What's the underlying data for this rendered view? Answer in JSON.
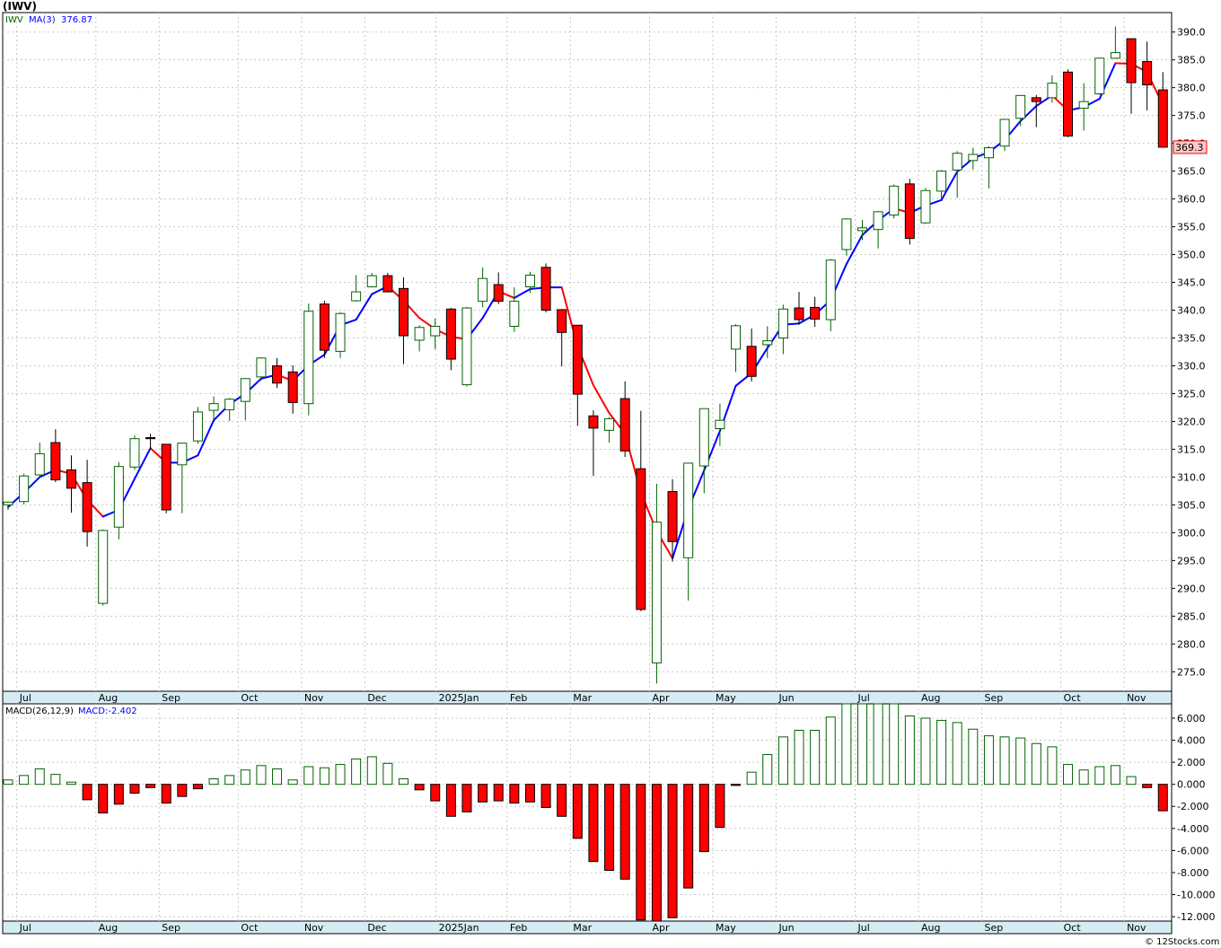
{
  "header": {
    "title": "(IWV)",
    "legend_symbol": "IWV",
    "legend_ma": "MA(3)",
    "legend_ma_value": "376.87",
    "price_badge": "369.3",
    "macd_label": "MACD(26,12,9)",
    "macd_value_label": "MACD:-2.402",
    "watermark": "© 12Stocks.com"
  },
  "colors": {
    "up": "#006400",
    "down": "#ff0000",
    "ma_up": "#0000ff",
    "ma_down": "#ff0000",
    "grid": "#c8c8c8",
    "axis_strip": "#d6ecf5",
    "badge_bg": "#ffc8c8"
  },
  "chart_data": [
    {
      "type": "candlestick",
      "title": "(IWV)",
      "interval": "weekly",
      "grid": true,
      "ylim": [
        271.5,
        393.5
      ],
      "y_ticks": [
        275,
        280,
        285,
        290,
        295,
        300,
        305,
        310,
        315,
        320,
        325,
        330,
        335,
        340,
        345,
        350,
        355,
        360,
        365,
        370,
        375,
        380,
        385,
        390
      ],
      "y_tick_labels": [
        "275.0",
        "280.0",
        "285.0",
        "290.0",
        "295.0",
        "300.0",
        "305.0",
        "310.0",
        "315.0",
        "320.0",
        "325.0",
        "330.0",
        "335.0",
        "340.0",
        "345.0",
        "350.0",
        "355.0",
        "360.0",
        "365.0",
        "370.0",
        "375.0",
        "380.0",
        "385.0",
        "390.0"
      ],
      "x_month_labels": [
        {
          "label": "Jul",
          "index": 1
        },
        {
          "label": "Aug",
          "index": 6
        },
        {
          "label": "Sep",
          "index": 10
        },
        {
          "label": "Oct",
          "index": 15
        },
        {
          "label": "Nov",
          "index": 19
        },
        {
          "label": "Dec",
          "index": 23
        },
        {
          "label": "2025Jan",
          "index": 27.5
        },
        {
          "label": "Feb",
          "index": 32
        },
        {
          "label": "Mar",
          "index": 36
        },
        {
          "label": "Apr",
          "index": 41
        },
        {
          "label": "May",
          "index": 45
        },
        {
          "label": "Jun",
          "index": 49
        },
        {
          "label": "Jul",
          "index": 54
        },
        {
          "label": "Aug",
          "index": 58
        },
        {
          "label": "Sep",
          "index": 62
        },
        {
          "label": "Oct",
          "index": 67
        },
        {
          "label": "Nov",
          "index": 71
        }
      ],
      "last_close_label": "369.3",
      "series": [
        {
          "name": "IWV",
          "candles": [
            [
              305,
              305.6,
              304.1,
              305.5
            ],
            [
              305.6,
              310.6,
              305.1,
              310.2
            ],
            [
              310.4,
              316.2,
              309.9,
              314.2
            ],
            [
              316.2,
              318.6,
              309.1,
              309.5
            ],
            [
              311.3,
              313.9,
              303.6,
              308
            ],
            [
              309,
              313.1,
              297.5,
              300.2
            ],
            [
              287.3,
              300.6,
              286.9,
              300.4
            ],
            [
              301,
              312.7,
              298.8,
              311.9
            ],
            [
              311.8,
              317.5,
              311.3,
              316.9
            ],
            [
              317.1,
              317.8,
              315,
              316.9
            ],
            [
              315.9,
              315.9,
              303.5,
              304.1
            ],
            [
              312.2,
              316.2,
              303.5,
              316.1
            ],
            [
              316.5,
              322.6,
              316,
              321.7
            ],
            [
              322,
              324.5,
              320.4,
              323.2
            ],
            [
              322.1,
              324.2,
              320.1,
              324
            ],
            [
              323.6,
              327.8,
              320.2,
              327.7
            ],
            [
              328,
              331.5,
              327.4,
              331.4
            ],
            [
              330,
              331.4,
              326,
              326.9
            ],
            [
              328.9,
              330.1,
              321.4,
              323.4
            ],
            [
              323.2,
              341.2,
              321.1,
              339.8
            ],
            [
              341.1,
              341.7,
              331.4,
              332.8
            ],
            [
              332.6,
              339.6,
              331.4,
              339.4
            ],
            [
              341.7,
              346.3,
              341.5,
              343.3
            ],
            [
              344.2,
              346.7,
              344.1,
              346.2
            ],
            [
              346.2,
              346.7,
              343.2,
              343.3
            ],
            [
              343.9,
              345.9,
              330.3,
              335.4
            ],
            [
              334.6,
              337.3,
              332.6,
              336.9
            ],
            [
              335.4,
              338.5,
              333,
              337.1
            ],
            [
              340.2,
              340.4,
              329.2,
              331.2
            ],
            [
              326.6,
              340.6,
              326.3,
              340.4
            ],
            [
              341.6,
              347.7,
              340.5,
              345.7
            ],
            [
              344.6,
              346.8,
              341.1,
              341.6
            ],
            [
              337.1,
              344.1,
              336.1,
              341.6
            ],
            [
              344.2,
              346.9,
              343.1,
              346.3
            ],
            [
              347.7,
              348.4,
              339.6,
              340
            ],
            [
              340.1,
              340.2,
              329.9,
              336
            ],
            [
              337.3,
              337.3,
              319.2,
              324.9
            ],
            [
              321,
              322,
              310.2,
              318.8
            ],
            [
              318.4,
              320.8,
              316.2,
              320.5
            ],
            [
              324.1,
              327.2,
              313.6,
              314.7
            ],
            [
              311.5,
              321.9,
              285.9,
              286.2
            ],
            [
              276.6,
              308.8,
              272.9,
              301.9
            ],
            [
              307.4,
              309.6,
              294.8,
              298.4
            ],
            [
              295.5,
              312.5,
              287.8,
              312.5
            ],
            [
              312,
              322.3,
              307.1,
              322.3
            ],
            [
              318.7,
              323.2,
              315.6,
              320.2
            ],
            [
              333,
              337.5,
              328.9,
              337.2
            ],
            [
              333.5,
              336.7,
              327.2,
              328.1
            ],
            [
              333.8,
              337.1,
              331.4,
              334.5
            ],
            [
              335,
              341,
              332.1,
              340.2
            ],
            [
              340.4,
              343.3,
              337.4,
              338.3
            ],
            [
              340.5,
              342.4,
              337,
              338.4
            ],
            [
              338.3,
              349.2,
              336.2,
              349
            ],
            [
              350.9,
              356.5,
              349.8,
              356.4
            ],
            [
              354.3,
              356.2,
              352.6,
              354.8
            ],
            [
              354.5,
              357.8,
              351.1,
              357.7
            ],
            [
              357.1,
              362.6,
              356.5,
              362.3
            ],
            [
              362.7,
              363.6,
              351.8,
              352.9
            ],
            [
              355.7,
              362,
              355.5,
              361.5
            ],
            [
              361.4,
              365.2,
              359.9,
              365
            ],
            [
              365.2,
              368.6,
              360.2,
              368.2
            ],
            [
              366.9,
              369.2,
              365.3,
              368
            ],
            [
              367.4,
              369.5,
              361.9,
              369.2
            ],
            [
              369.5,
              374.4,
              368.6,
              374.3
            ],
            [
              374.5,
              378.7,
              373.1,
              378.6
            ],
            [
              378.2,
              378.7,
              372.9,
              377.5
            ],
            [
              378.2,
              382.2,
              377.3,
              380.8
            ],
            [
              382.8,
              383.3,
              371.1,
              371.3
            ],
            [
              376.3,
              380.8,
              372.3,
              377.5
            ],
            [
              378.9,
              385.4,
              378.7,
              385.3
            ],
            [
              385.3,
              391,
              385.2,
              386.3
            ],
            [
              388.8,
              388.8,
              375.3,
              380.9
            ],
            [
              384.7,
              388.3,
              375.9,
              380.5
            ],
            [
              379.6,
              382.8,
              369.3,
              369.3
            ]
          ]
        },
        {
          "name": "MA(3)",
          "values": [
            304.6,
            307.2,
            310,
            311.3,
            310.6,
            305.9,
            302.9,
            304.1,
            309.7,
            315.2,
            312.6,
            312.6,
            313.9,
            320.2,
            323.1,
            325,
            327.7,
            328.4,
            327.3,
            330.1,
            332,
            337.3,
            338.3,
            342.9,
            344.3,
            341.7,
            338.6,
            336.6,
            335.2,
            334.8,
            338.6,
            343.4,
            342.2,
            343.8,
            344.1,
            344.1,
            333.5,
            326.5,
            321.5,
            317.8,
            307.2,
            300.3,
            295.4,
            304.3,
            311.2,
            318.3,
            326.4,
            328.7,
            333.2,
            337.4,
            337.6,
            339.2,
            341.8,
            348.3,
            353.5,
            356.1,
            358.3,
            357.5,
            358.8,
            359.8,
            364.9,
            367.3,
            368.4,
            370.6,
            374,
            376.7,
            378.6,
            375.9,
            376.5,
            378,
            384.4,
            384.3,
            382.8,
            376.9
          ]
        }
      ]
    },
    {
      "type": "bar",
      "title": "MACD(26,12,9)",
      "ylim": [
        -12.4,
        7.3
      ],
      "y_ticks": [
        -12,
        -10,
        -8,
        -6,
        -4,
        -2,
        0,
        2,
        4,
        6
      ],
      "y_tick_labels": [
        "-12.000",
        "-10.000",
        "-8.000",
        "-6.000",
        "-4.000",
        "-2.000",
        "0.000",
        "2.000",
        "4.000",
        "6.000"
      ],
      "series": [
        {
          "name": "MACD",
          "values": [
            0.4,
            0.8,
            1.4,
            0.9,
            0.2,
            -1.4,
            -2.6,
            -1.8,
            -0.8,
            -0.3,
            -1.7,
            -1.1,
            -0.4,
            0.5,
            0.8,
            1.3,
            1.7,
            1.4,
            0.4,
            1.6,
            1.5,
            1.8,
            2.3,
            2.5,
            1.9,
            0.5,
            -0.5,
            -1.5,
            -2.9,
            -2.5,
            -1.6,
            -1.5,
            -1.7,
            -1.6,
            -2.1,
            -2.9,
            -4.9,
            -7.0,
            -7.8,
            -8.6,
            -12.3,
            -12.5,
            -12.1,
            -9.4,
            -6.1,
            -3.9,
            -0.1,
            1.1,
            2.7,
            4.3,
            4.9,
            4.9,
            6.1,
            7.5,
            7.7,
            7.7,
            7.8,
            6.2,
            6.0,
            5.8,
            5.6,
            5.0,
            4.4,
            4.3,
            4.2,
            3.7,
            3.4,
            1.8,
            1.3,
            1.6,
            1.7,
            0.7,
            -0.3,
            -2.4
          ]
        }
      ]
    }
  ]
}
